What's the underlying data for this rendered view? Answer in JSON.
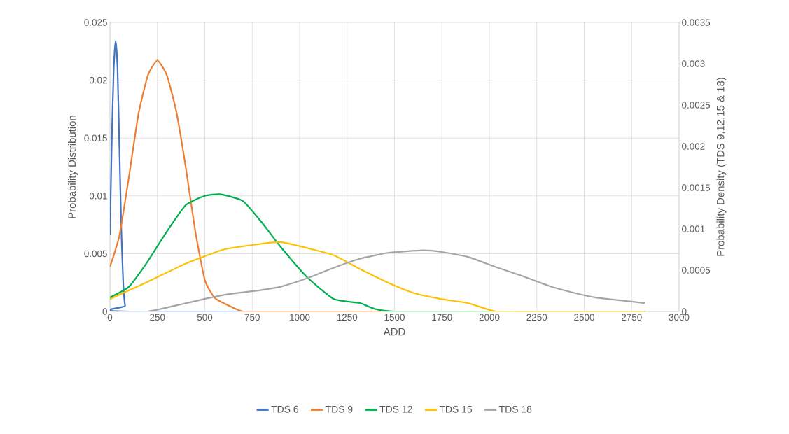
{
  "chart_data": {
    "type": "line",
    "xlabel": "ADD",
    "ylabel": "Probability Distribution",
    "y2label": "Probability Density (TDS 9,12,15 & 18)",
    "xlim": [
      0,
      3000
    ],
    "xticks": [
      0,
      250,
      500,
      750,
      1000,
      1250,
      1500,
      1750,
      2000,
      2250,
      2500,
      2750,
      3000
    ],
    "ylim": [
      0,
      0.025
    ],
    "yticks": [
      0,
      0.005,
      0.01,
      0.015,
      0.02,
      0.025
    ],
    "y2lim": [
      0,
      0.0035
    ],
    "y2ticks": [
      0,
      0.0005,
      0.001,
      0.0015,
      0.002,
      0.0025,
      0.003,
      0.0035
    ],
    "grid": true,
    "legend": "bottom",
    "marker": "none",
    "line_style": "solid",
    "series": [
      {
        "name": "TDS 6",
        "color": "#4472c4",
        "x": [
          0,
          10,
          20,
          30,
          40,
          50,
          60,
          70,
          80,
          100,
          2820
        ],
        "values": [
          0.0066,
          0.015,
          0.021,
          0.0234,
          0.021,
          0.014,
          0.007,
          0.0025,
          0.0005,
          0,
          0
        ]
      },
      {
        "name": "TDS 9",
        "color": "#ed7d31",
        "axis": "y2",
        "x": [
          0,
          50,
          100,
          150,
          200,
          250,
          300,
          350,
          400,
          450,
          500,
          550,
          600,
          700,
          800,
          2820
        ],
        "values": [
          0.00054,
          0.00092,
          0.00163,
          0.00239,
          0.00286,
          0.00304,
          0.00286,
          0.00242,
          0.00174,
          0.00097,
          0.00038,
          0.00017,
          0.0001,
          0,
          0,
          0
        ]
      },
      {
        "name": "TDS 12",
        "color": "#00b050",
        "axis": "y2",
        "x": [
          0,
          100,
          200,
          300,
          400,
          500,
          580,
          700,
          800,
          897,
          1037,
          1181,
          1321,
          1500,
          2820
        ],
        "values": [
          0.00017,
          0.0003,
          0.00061,
          0.00097,
          0.00129,
          0.0014,
          0.00142,
          0.00134,
          0.00108,
          0.00079,
          0.00042,
          0.00015,
          0.0001,
          0,
          0
        ]
      },
      {
        "name": "TDS 15",
        "color": "#ffc000",
        "axis": "y2",
        "x": [
          0,
          200,
          400,
          600,
          800,
          900,
          1037,
          1181,
          1321,
          1465,
          1606,
          1749,
          1889,
          2031,
          2173,
          2314,
          2820
        ],
        "values": [
          0.00015,
          0.00036,
          0.00058,
          0.00075,
          0.00082,
          0.00084,
          0.00077,
          0.00068,
          0.00051,
          0.00035,
          0.00022,
          0.00015,
          0.0001,
          0,
          0,
          0,
          0
        ]
      },
      {
        "name": "TDS 18",
        "color": "#a5a5a5",
        "axis": "y2",
        "x": [
          0,
          200,
          400,
          600,
          800,
          900,
          1037,
          1181,
          1321,
          1465,
          1650,
          1749,
          1889,
          2031,
          2173,
          2314,
          2456,
          2556,
          2820
        ],
        "values": [
          0,
          0,
          0.0001,
          0.0002,
          0.00026,
          0.0003,
          0.0004,
          0.00053,
          0.00064,
          0.00071,
          0.00074,
          0.00072,
          0.00066,
          0.00054,
          0.00043,
          0.00031,
          0.00022,
          0.00017,
          0.0001
        ]
      }
    ]
  }
}
